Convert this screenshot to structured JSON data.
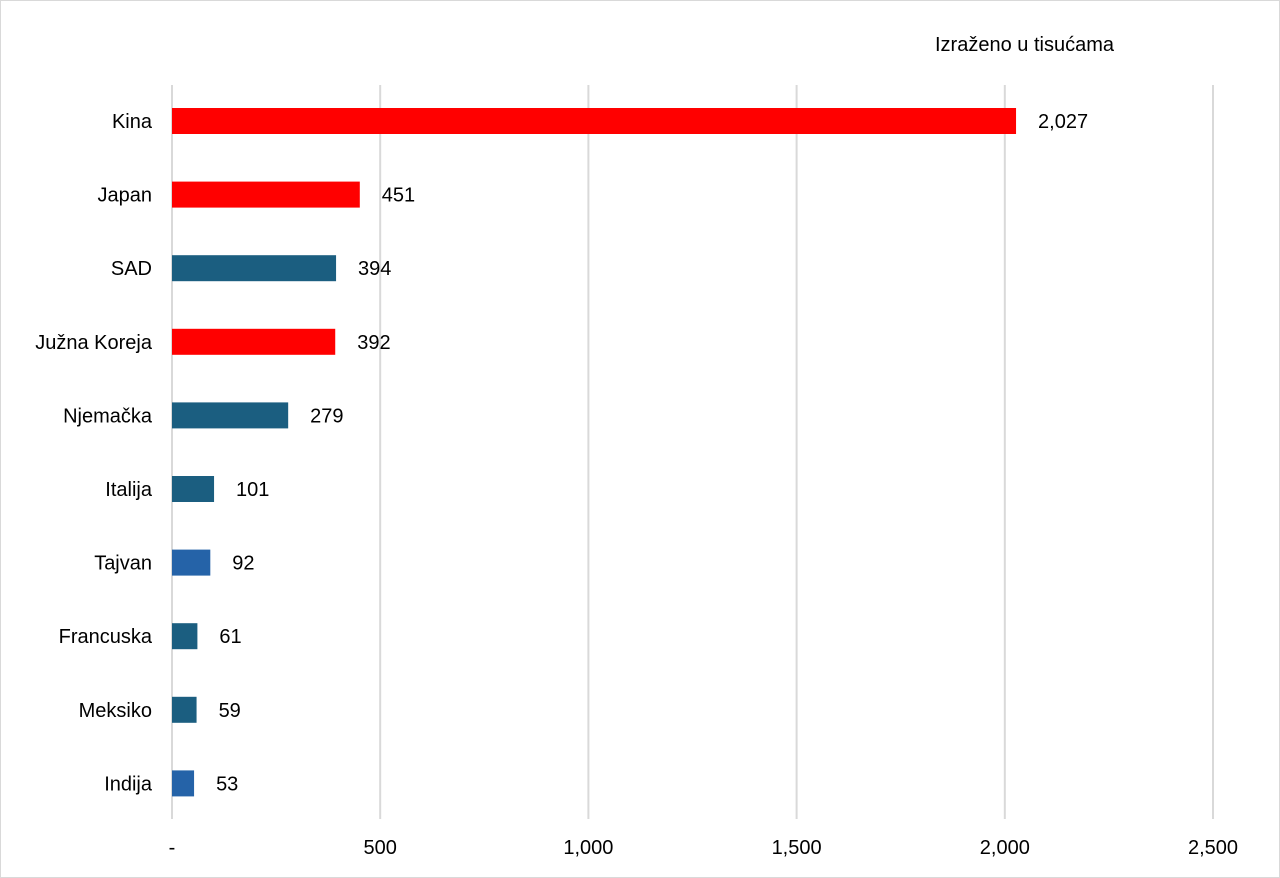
{
  "chart_data": {
    "type": "bar",
    "orientation": "horizontal",
    "unit_note": "Izraženo u tisućama",
    "categories": [
      "Kina",
      "Japan",
      "SAD",
      "Južna Koreja",
      "Njemačka",
      "Italija",
      "Tajvan",
      "Francuska",
      "Meksiko",
      "Indija"
    ],
    "values": [
      2027,
      451,
      394,
      392,
      279,
      101,
      92,
      61,
      59,
      53
    ],
    "value_labels": [
      "2,027",
      "451",
      "394",
      "392",
      "279",
      "101",
      "92",
      "61",
      "59",
      "53"
    ],
    "bar_colors": [
      "#ff0000",
      "#ff0000",
      "#1b5e80",
      "#ff0000",
      "#1b5e80",
      "#1b5e80",
      "#2563a8",
      "#1b5e80",
      "#1b5e80",
      "#2563a8"
    ],
    "x_ticks": [
      0,
      500,
      1000,
      1500,
      2000,
      2500
    ],
    "x_tick_labels": [
      "-",
      "500",
      "1,000",
      "1,500",
      "2,000",
      "2,500"
    ],
    "xlim": [
      0,
      2500
    ],
    "grid": "vertical",
    "legend": "none",
    "title": "",
    "xlabel": "",
    "ylabel": ""
  }
}
